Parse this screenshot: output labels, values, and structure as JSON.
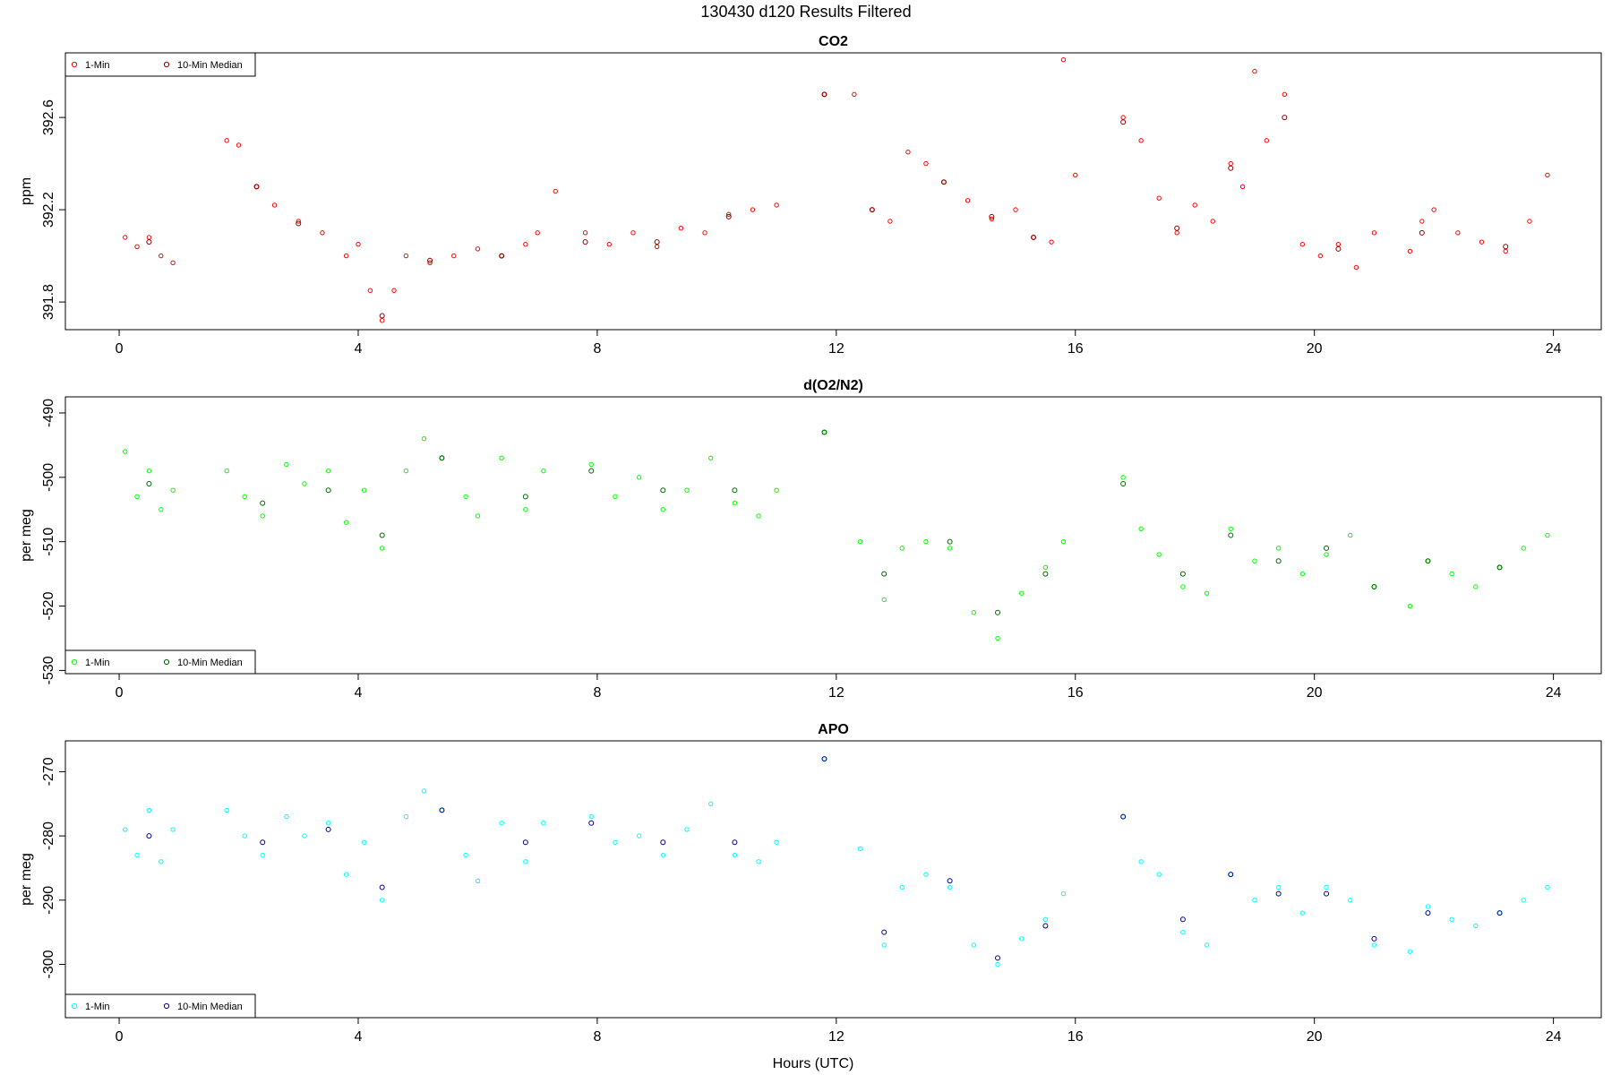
{
  "figure_title": "130430   d120   Results Filtered",
  "x_axis_label": "Hours (UTC)",
  "chart_data": [
    {
      "type": "scatter",
      "title": "CO2",
      "ylabel": "ppm",
      "xlim": [
        -0.9,
        24.8
      ],
      "ylim": [
        391.68,
        392.88
      ],
      "xticks": [
        0,
        4,
        8,
        12,
        16,
        20,
        24
      ],
      "yticks": [
        391.8,
        392.2,
        392.6
      ],
      "ytick_labels": [
        "391.8",
        "392.2",
        "392.6"
      ],
      "legend_position": "top-left",
      "series": [
        {
          "name": "1-Min",
          "color": "#ff0000",
          "x": [
            0.1,
            0.3,
            0.5,
            0.7,
            0.9,
            1.8,
            2.0,
            2.3,
            2.6,
            3.0,
            3.4,
            3.8,
            4.0,
            4.2,
            4.4,
            4.6,
            4.8,
            5.2,
            5.6,
            6.0,
            6.4,
            6.8,
            7.0,
            7.3,
            7.8,
            8.2,
            8.6,
            9.0,
            9.4,
            9.8,
            10.2,
            10.6,
            11.0,
            11.8,
            12.3,
            12.6,
            12.9,
            13.2,
            13.5,
            13.8,
            14.2,
            14.6,
            15.0,
            15.3,
            15.6,
            15.8,
            16.0,
            16.8,
            17.1,
            17.4,
            17.7,
            18.0,
            18.3,
            18.6,
            18.8,
            19.0,
            19.2,
            19.5,
            19.8,
            20.1,
            20.4,
            20.7,
            21.0,
            21.6,
            21.8,
            22.0,
            22.4,
            22.8,
            23.2,
            23.6,
            23.9
          ],
          "y": [
            392.08,
            392.04,
            392.08,
            392.0,
            391.97,
            392.5,
            392.48,
            392.3,
            392.22,
            392.15,
            392.1,
            392.0,
            392.05,
            391.85,
            391.72,
            391.85,
            392.0,
            391.97,
            392.0,
            392.03,
            392.0,
            392.05,
            392.1,
            392.28,
            392.1,
            392.05,
            392.1,
            392.04,
            392.12,
            392.1,
            392.18,
            392.2,
            392.22,
            392.7,
            392.7,
            392.2,
            392.15,
            392.45,
            392.4,
            392.32,
            392.24,
            392.16,
            392.2,
            392.08,
            392.06,
            392.85,
            392.35,
            392.6,
            392.5,
            392.25,
            392.1,
            392.22,
            392.15,
            392.4,
            392.3,
            392.8,
            392.5,
            392.7,
            392.05,
            392.0,
            392.05,
            391.95,
            392.1,
            392.02,
            392.15,
            392.2,
            392.1,
            392.06,
            392.02,
            392.15,
            392.35
          ]
        },
        {
          "name": "10-Min Median",
          "color": "#8b0000",
          "x": [
            0.5,
            2.3,
            3.0,
            4.4,
            5.2,
            6.4,
            7.8,
            9.0,
            10.2,
            11.8,
            12.6,
            13.8,
            14.6,
            15.3,
            16.8,
            17.7,
            18.6,
            19.5,
            20.4,
            21.8,
            23.2
          ],
          "y": [
            392.06,
            392.3,
            392.14,
            391.74,
            391.98,
            392.0,
            392.06,
            392.06,
            392.17,
            392.7,
            392.2,
            392.32,
            392.17,
            392.08,
            392.58,
            392.12,
            392.38,
            392.6,
            392.03,
            392.1,
            392.04
          ]
        }
      ]
    },
    {
      "type": "scatter",
      "title": "d(O2/N2)",
      "ylabel": "per meg",
      "xlim": [
        -0.9,
        24.8
      ],
      "ylim": [
        -530.5,
        -487.5
      ],
      "xticks": [
        0,
        4,
        8,
        12,
        16,
        20,
        24
      ],
      "yticks": [
        -530,
        -520,
        -510,
        -500,
        -490
      ],
      "ytick_labels": [
        "-530",
        "-520",
        "-510",
        "-500",
        "-490"
      ],
      "legend_position": "bottom-left",
      "series": [
        {
          "name": "1-Min",
          "color": "#00ff00",
          "x": [
            0.1,
            0.3,
            0.5,
            0.7,
            0.9,
            1.8,
            2.1,
            2.4,
            2.8,
            3.1,
            3.5,
            3.8,
            4.1,
            4.4,
            4.8,
            5.1,
            5.4,
            5.8,
            6.0,
            6.4,
            6.8,
            7.1,
            7.9,
            8.3,
            8.7,
            9.1,
            9.5,
            9.9,
            10.3,
            10.7,
            11.0,
            11.8,
            12.4,
            12.8,
            13.1,
            13.5,
            13.9,
            14.3,
            14.7,
            15.1,
            15.5,
            15.8,
            16.8,
            17.1,
            17.4,
            17.8,
            18.2,
            18.6,
            19.0,
            19.4,
            19.8,
            20.2,
            20.6,
            21.0,
            21.6,
            21.9,
            22.3,
            22.7,
            23.1,
            23.5,
            23.9
          ],
          "y": [
            -496,
            -503,
            -499,
            -505,
            -502,
            -499,
            -503,
            -506,
            -498,
            -501,
            -499,
            -507,
            -502,
            -511,
            -499,
            -494,
            -497,
            -503,
            -506,
            -497,
            -505,
            -499,
            -498,
            -503,
            -500,
            -505,
            -502,
            -497,
            -504,
            -506,
            -502,
            -493,
            -510,
            -519,
            -511,
            -510,
            -511,
            -521,
            -525,
            -518,
            -514,
            -510,
            -500,
            -508,
            -512,
            -517,
            -518,
            -508,
            -513,
            -511,
            -515,
            -512,
            -509,
            -517,
            -520,
            -513,
            -515,
            -517,
            -514,
            -511,
            -509
          ]
        },
        {
          "name": "10-Min Median",
          "color": "#006400",
          "x": [
            0.5,
            2.4,
            3.5,
            4.4,
            5.4,
            6.8,
            7.9,
            9.1,
            10.3,
            11.8,
            12.8,
            13.9,
            14.7,
            15.5,
            16.8,
            17.8,
            18.6,
            19.4,
            20.2,
            21.0,
            21.9,
            23.1
          ],
          "y": [
            -501,
            -504,
            -502,
            -509,
            -497,
            -503,
            -499,
            -502,
            -502,
            -493,
            -515,
            -510,
            -521,
            -515,
            -501,
            -515,
            -509,
            -513,
            -511,
            -517,
            -513,
            -514
          ]
        }
      ]
    },
    {
      "type": "scatter",
      "title": "APO",
      "ylabel": "per meg",
      "xlim": [
        -0.9,
        24.8
      ],
      "ylim": [
        -308.3,
        -265.2
      ],
      "xticks": [
        0,
        4,
        8,
        12,
        16,
        20,
        24
      ],
      "yticks": [
        -300,
        -290,
        -280,
        -270
      ],
      "ytick_labels": [
        "-300",
        "-290",
        "-280",
        "-270"
      ],
      "legend_position": "bottom-left",
      "series": [
        {
          "name": "1-Min",
          "color": "#00ffff",
          "x": [
            0.1,
            0.3,
            0.5,
            0.7,
            0.9,
            1.8,
            2.1,
            2.4,
            2.8,
            3.1,
            3.5,
            3.8,
            4.1,
            4.4,
            4.8,
            5.1,
            5.4,
            5.8,
            6.0,
            6.4,
            6.8,
            7.1,
            7.9,
            8.3,
            8.7,
            9.1,
            9.5,
            9.9,
            10.3,
            10.7,
            11.0,
            11.8,
            12.4,
            12.8,
            13.1,
            13.5,
            13.9,
            14.3,
            14.7,
            15.1,
            15.5,
            15.8,
            16.8,
            17.1,
            17.4,
            17.8,
            18.2,
            18.6,
            19.0,
            19.4,
            19.8,
            20.2,
            20.6,
            21.0,
            21.6,
            21.9,
            22.3,
            22.7,
            23.1,
            23.5,
            23.9
          ],
          "y": [
            -279,
            -283,
            -276,
            -284,
            -279,
            -276,
            -280,
            -283,
            -277,
            -280,
            -278,
            -286,
            -281,
            -290,
            -277,
            -273,
            -276,
            -283,
            -287,
            -278,
            -284,
            -278,
            -277,
            -281,
            -280,
            -283,
            -279,
            -275,
            -283,
            -284,
            -281,
            -268,
            -282,
            -297,
            -288,
            -286,
            -288,
            -297,
            -300,
            -296,
            -293,
            -289,
            -277,
            -284,
            -286,
            -295,
            -297,
            -286,
            -290,
            -288,
            -292,
            -288,
            -290,
            -297,
            -298,
            -291,
            -293,
            -294,
            -292,
            -290,
            -288
          ]
        },
        {
          "name": "10-Min Median",
          "color": "#00008b",
          "x": [
            0.5,
            2.4,
            3.5,
            4.4,
            5.4,
            6.8,
            7.9,
            9.1,
            10.3,
            11.8,
            12.8,
            13.9,
            14.7,
            15.5,
            16.8,
            17.8,
            18.6,
            19.4,
            20.2,
            21.0,
            21.9,
            23.1
          ],
          "y": [
            -280,
            -281,
            -279,
            -288,
            -276,
            -281,
            -278,
            -281,
            -281,
            -268,
            -295,
            -287,
            -299,
            -294,
            -277,
            -293,
            -286,
            -289,
            -289,
            -296,
            -292,
            -292
          ]
        }
      ]
    }
  ]
}
